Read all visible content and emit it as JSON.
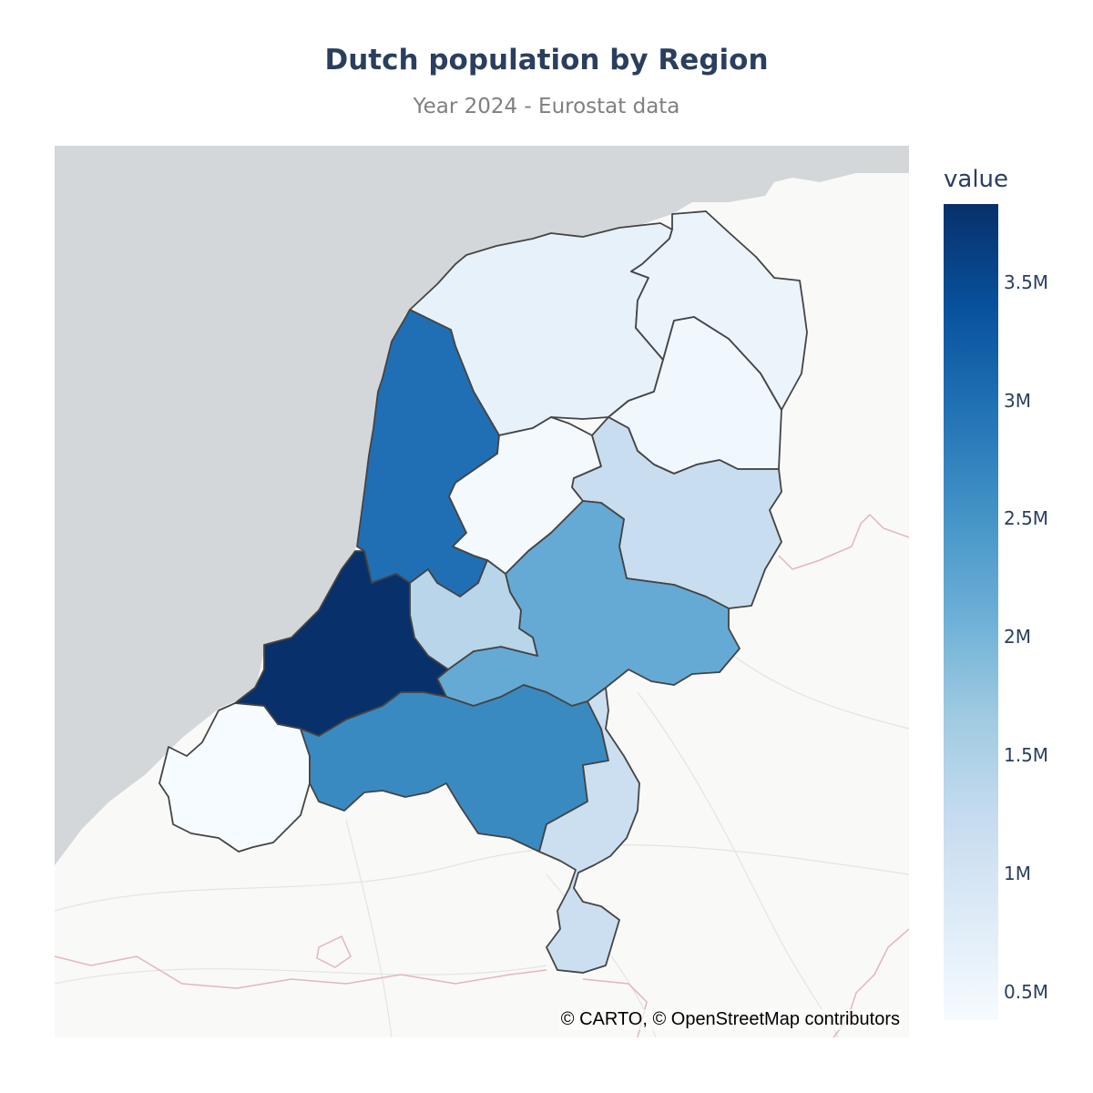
{
  "title": "Dutch population by Region",
  "subtitle": "Year 2024 - Eurostat data",
  "attribution": "© CARTO, © OpenStreetMap contributors",
  "colorbar": {
    "title": "value",
    "min": 380000,
    "max": 3830000,
    "ticks": [
      {
        "label": "0.5M",
        "value": 500000
      },
      {
        "label": "1M",
        "value": 1000000
      },
      {
        "label": "1.5M",
        "value": 1500000
      },
      {
        "label": "2M",
        "value": 2000000
      },
      {
        "label": "2.5M",
        "value": 2500000
      },
      {
        "label": "3M",
        "value": 3000000
      },
      {
        "label": "3.5M",
        "value": 3500000
      }
    ],
    "colorscale": [
      "#f7fbff",
      "#deebf7",
      "#c6dbef",
      "#9ecae1",
      "#6baed6",
      "#4292c6",
      "#2171b5",
      "#08519c",
      "#08306b"
    ]
  },
  "map": {
    "sea_color": "#d3d7d9",
    "land_color": "#f9f9f8",
    "border_color": "#444444",
    "regions": [
      {
        "id": "friesland",
        "value": 660000
      },
      {
        "id": "groningen",
        "value": 595000
      },
      {
        "id": "drenthe",
        "value": 500000
      },
      {
        "id": "noord-holland",
        "value": 2990000
      },
      {
        "id": "flevoland",
        "value": 440000
      },
      {
        "id": "overijssel",
        "value": 1180000
      },
      {
        "id": "gelderland",
        "value": 2170000
      },
      {
        "id": "utrecht",
        "value": 1390000
      },
      {
        "id": "zuid-holland",
        "value": 3830000
      },
      {
        "id": "zeeland",
        "value": 390000
      },
      {
        "id": "noord-brabant",
        "value": 2640000
      },
      {
        "id": "limburg",
        "value": 1130000
      }
    ]
  }
}
